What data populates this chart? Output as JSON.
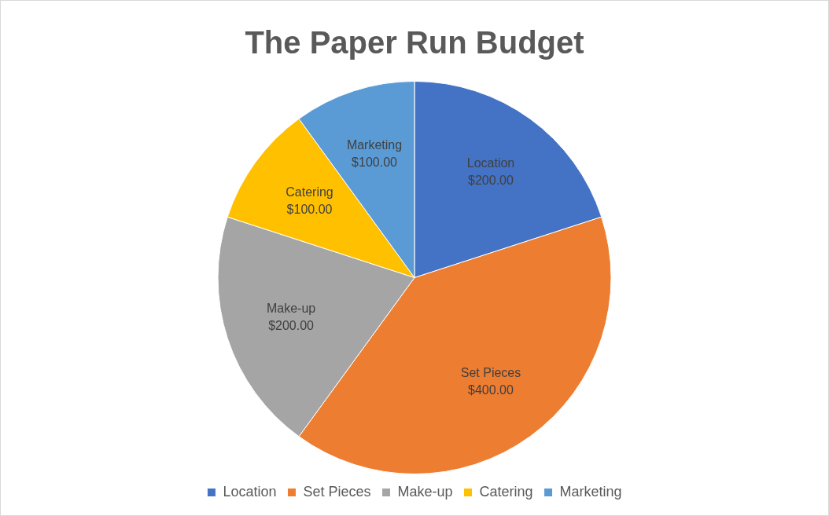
{
  "chart_data": {
    "type": "pie",
    "title": "The Paper Run Budget",
    "categories": [
      "Location",
      "Set Pieces",
      "Make-up",
      "Catering",
      "Marketing"
    ],
    "values": [
      200,
      400,
      200,
      100,
      100
    ],
    "colors": [
      "#4472c4",
      "#ed7d31",
      "#a5a5a5",
      "#ffc000",
      "#5b9bd5"
    ],
    "value_labels": [
      "$200.00",
      "$400.00",
      "$200.00",
      "$100.00",
      "$100.00"
    ],
    "legend": "bottom"
  }
}
